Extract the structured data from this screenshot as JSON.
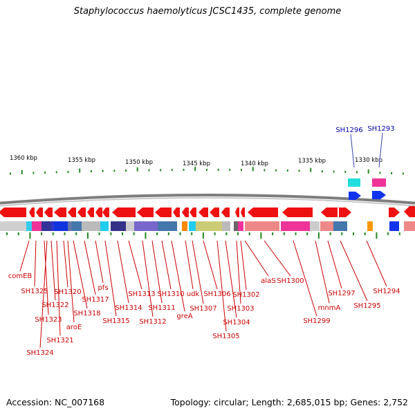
{
  "title": "Staphylococcus haemolyticus JCSC1435, complete genome",
  "footer": {
    "accession": "Accession: NC_007168",
    "topology": "Topology: circular; Length: 2,685,015 bp; Genes: 2,752"
  },
  "scale_labels": [
    "1360 kbp",
    "1355 kbp",
    "1350 kbp",
    "1345 kbp",
    "1340 kbp",
    "1335 kbp",
    "1330 kbp"
  ],
  "colors": {
    "gene_forward": "#ee1111",
    "gene_label": "#cc0000",
    "rna_label": "#0000aa",
    "backbone": "#7f7f7f",
    "tick": "#228822"
  },
  "top_labels": [
    "SH1296",
    "SH1293"
  ],
  "bottom_labels": [
    "comEB",
    "SH1325",
    "SH1323",
    "SH1324",
    "SH1322",
    "SH1321",
    "SH1320",
    "aroE",
    "SH1318",
    "SH1317",
    "pfs",
    "SH1315",
    "SH1314",
    "SH1313",
    "SH1312",
    "SH1311",
    "SH1310",
    "greA",
    "udk",
    "SH1307",
    "SH1306",
    "SH1305",
    "SH1304",
    "SH1303",
    "SH1302",
    "alaS",
    "SH1300",
    "SH1299",
    "mnmA",
    "SH1297",
    "SH1295",
    "SH1294"
  ]
}
